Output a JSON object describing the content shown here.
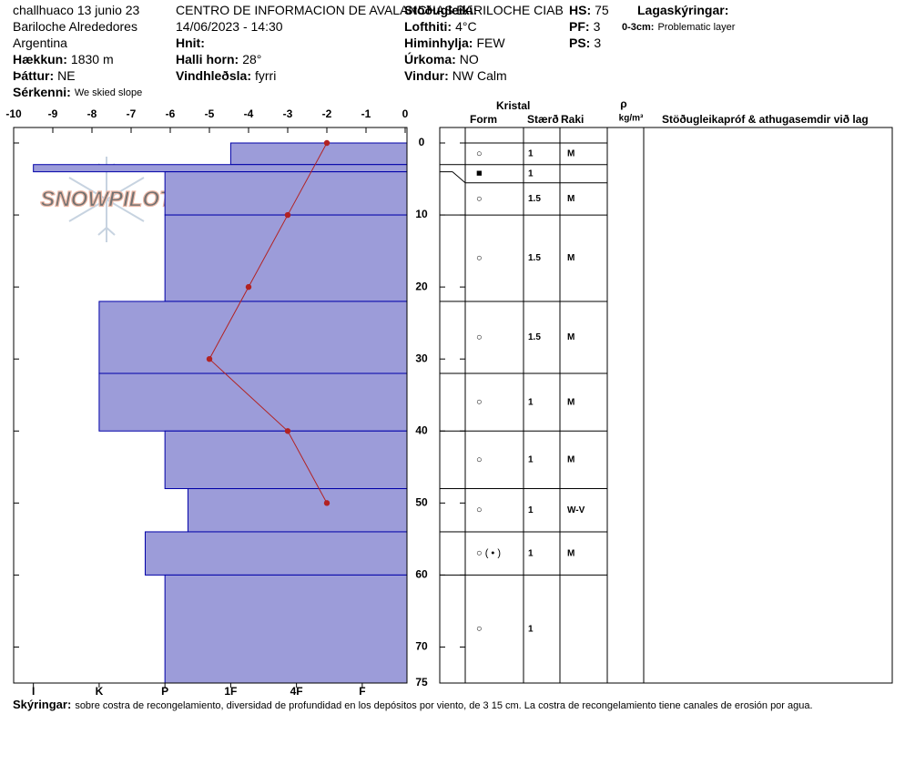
{
  "header": {
    "columns": [
      [
        {
          "text": "challhuaco 13 junio 23"
        },
        {
          "text": "Bariloche Alrededores"
        },
        {
          "text": "Argentina"
        },
        {
          "label": "Hækkun:",
          "value": "1830 m"
        },
        {
          "label": "Þáttur:",
          "value": "NE"
        },
        {
          "label": "Sérkenni:",
          "value": "We skied slope"
        }
      ],
      [
        {
          "text": "CENTRO DE INFORMACION DE AVALANCHAS BARILOCHE CIAB"
        },
        {
          "text": "14/06/2023 - 14:30"
        },
        {
          "label": "Hnit:"
        },
        {
          "label": "Halli horn:",
          "value": "28°"
        },
        {
          "label": "Vindhleðsla:",
          "value": "fyrri"
        }
      ],
      [
        {
          "label": "Stöðugleiki:"
        },
        {
          "label": "Lofthiti:",
          "value": "4°C"
        },
        {
          "label": "Himinhylja:",
          "value": "FEW"
        },
        {
          "label": "Úrkoma:",
          "value": "NO"
        },
        {
          "label": "Vindur:",
          "value": "NW Calm"
        }
      ],
      [
        {
          "label": "HS:",
          "value": "75"
        },
        {
          "label": "PF:",
          "value": "3"
        },
        {
          "label": "PS:",
          "value": "3"
        }
      ],
      [
        {
          "label": "Lagaskýringar:"
        },
        {
          "label": "0-3cm:",
          "value": "Problematic layer"
        }
      ]
    ]
  },
  "logo": "SNOWPILOT",
  "table": {
    "crystal": "Kristal",
    "form": "Form",
    "size": "Stærð",
    "moisture": "Raki",
    "density": "ρ",
    "density_unit": "kg/m³",
    "comments": "Stöðugleikapróf & athugasemdir við lag"
  },
  "footer": {
    "label": "Skýringar:",
    "text": "sobre costra de recongelamiento, diversidad de profundidad en los depósitos por viento, de 3  15 cm. La costra de recongelamiento tiene canales de erosión por agua."
  },
  "chart_data": {
    "type": "snow_profile",
    "xlim": [
      -10,
      0
    ],
    "xticks": [
      -10,
      -9,
      -8,
      -7,
      -6,
      -5,
      -4,
      -3,
      -2,
      -1,
      0
    ],
    "ylim": [
      0,
      75
    ],
    "yticks": [
      0,
      10,
      20,
      30,
      40,
      50,
      60,
      70,
      75
    ],
    "hardness_lim": [
      6.3,
      0.32
    ],
    "hardness_ticks": [
      {
        "value": 6,
        "label": "I"
      },
      {
        "value": 5,
        "label": "K"
      },
      {
        "value": 4,
        "label": "P"
      },
      {
        "value": 3,
        "label": "1F"
      },
      {
        "value": 2,
        "label": "4F"
      },
      {
        "value": 1,
        "label": "F"
      }
    ],
    "layer_color": "#9c9cd9",
    "layer_edge": "#0000a8",
    "layers": {
      "tops": [
        0,
        3,
        4,
        10,
        22,
        32,
        40,
        48,
        54,
        60
      ],
      "bottoms": [
        3,
        4,
        10,
        22,
        32,
        40,
        48,
        54,
        60,
        75
      ],
      "hardness": [
        3,
        6,
        4,
        4,
        5,
        5,
        4,
        3.65,
        4.3,
        4
      ],
      "forms": [
        "○",
        "■",
        "○",
        "○",
        "○",
        "○",
        "○",
        "○",
        "○ ( • )",
        "○"
      ],
      "sizes": [
        "1",
        "1",
        "1.5",
        "1.5",
        "1.5",
        "1",
        "1",
        "1",
        "1",
        "1"
      ],
      "moistures": [
        "M",
        null,
        "M",
        "M",
        "M",
        "M",
        "M",
        "W-V",
        "M",
        null
      ]
    },
    "temperature": {
      "color": "#b22222",
      "depths": [
        0,
        10,
        20,
        30,
        40,
        50
      ],
      "values": [
        -2,
        -3,
        -4,
        -5,
        -3,
        -2
      ]
    }
  }
}
